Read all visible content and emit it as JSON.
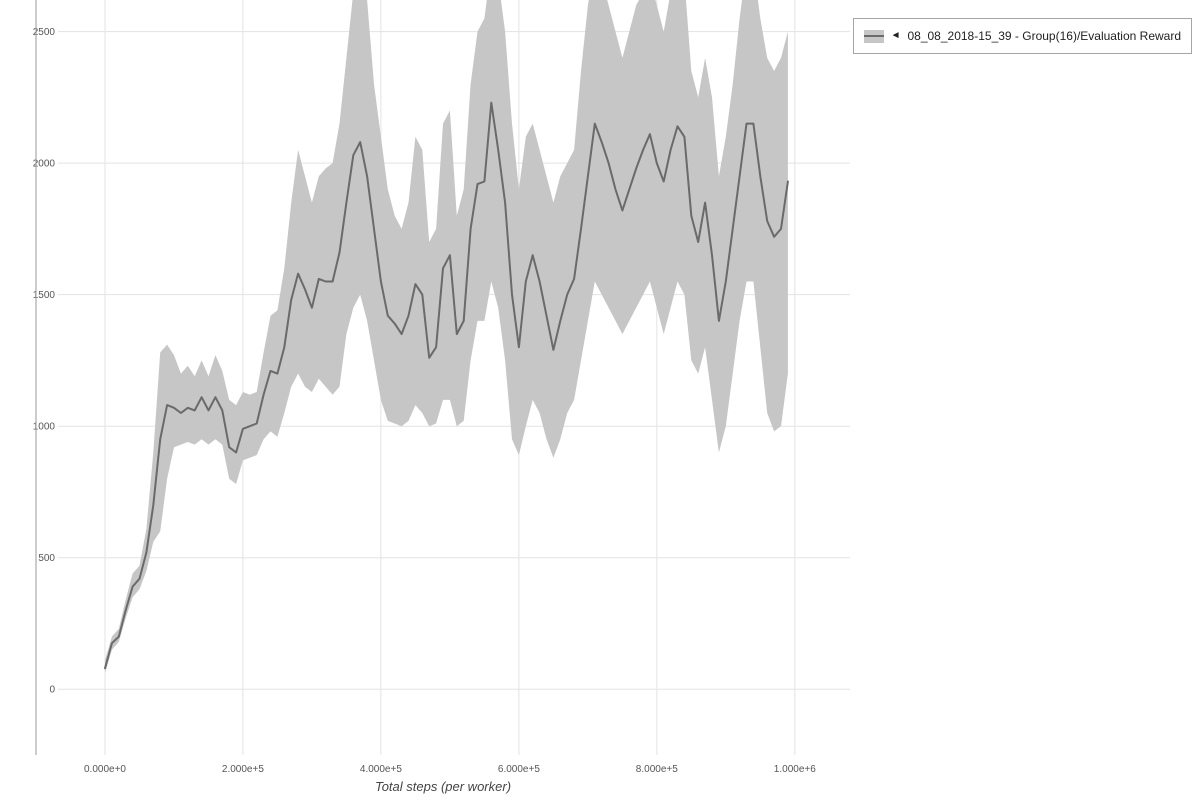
{
  "legend": {
    "arrow": "◄",
    "label": "08_08_2018-15_39 - Group(16)/Evaluation Reward"
  },
  "colors": {
    "grid": "#e3e3e3",
    "axis_line": "#999999",
    "tick_text": "#555555",
    "axis_title": "#444444",
    "band": "#c6c6c6",
    "line": "#6a6a6a"
  },
  "chart_data": {
    "type": "line",
    "title": "",
    "xlabel": "Total steps (per worker)",
    "ylabel": "",
    "grid": true,
    "legend_position": "top-right",
    "x_range": [
      -100000,
      1080000
    ],
    "y_range": [
      -250,
      2620
    ],
    "x_ticks": {
      "values": [
        0,
        200000,
        400000,
        600000,
        800000,
        1000000
      ],
      "labels": [
        "0.000e+0",
        "2.000e+5",
        "4.000e+5",
        "6.000e+5",
        "8.000e+5",
        "1.000e+6"
      ]
    },
    "y_ticks": {
      "values": [
        0,
        500,
        1000,
        1500,
        2000,
        2500
      ],
      "labels": [
        "0",
        "500",
        "1000",
        "1500",
        "2000",
        "2500"
      ]
    },
    "series": [
      {
        "name": "08_08_2018-15_39 - Group(16)/Evaluation Reward",
        "line_color": "#6a6a6a",
        "band_color": "#c6c6c6",
        "x": [
          0,
          10000,
          20000,
          30000,
          40000,
          50000,
          60000,
          70000,
          80000,
          90000,
          100000,
          110000,
          120000,
          130000,
          140000,
          150000,
          160000,
          170000,
          180000,
          190000,
          200000,
          210000,
          220000,
          230000,
          240000,
          250000,
          260000,
          270000,
          280000,
          290000,
          300000,
          310000,
          320000,
          330000,
          340000,
          350000,
          360000,
          370000,
          380000,
          390000,
          400000,
          410000,
          420000,
          430000,
          440000,
          450000,
          460000,
          470000,
          480000,
          490000,
          500000,
          510000,
          520000,
          530000,
          540000,
          550000,
          560000,
          570000,
          580000,
          590000,
          600000,
          610000,
          620000,
          630000,
          640000,
          650000,
          660000,
          670000,
          680000,
          690000,
          700000,
          710000,
          720000,
          730000,
          740000,
          750000,
          760000,
          770000,
          780000,
          790000,
          800000,
          810000,
          820000,
          830000,
          840000,
          850000,
          860000,
          870000,
          880000,
          890000,
          900000,
          910000,
          920000,
          930000,
          940000,
          950000,
          960000,
          970000,
          980000,
          990000
        ],
        "mean": [
          80,
          175,
          200,
          300,
          390,
          420,
          520,
          700,
          950,
          1080,
          1070,
          1050,
          1070,
          1060,
          1110,
          1060,
          1110,
          1060,
          920,
          900,
          990,
          1000,
          1010,
          1120,
          1210,
          1200,
          1300,
          1480,
          1580,
          1520,
          1450,
          1560,
          1550,
          1550,
          1660,
          1850,
          2030,
          2080,
          1950,
          1750,
          1550,
          1420,
          1390,
          1350,
          1420,
          1540,
          1500,
          1260,
          1300,
          1600,
          1650,
          1350,
          1400,
          1750,
          1920,
          1930,
          2230,
          2050,
          1850,
          1500,
          1300,
          1550,
          1650,
          1550,
          1420,
          1290,
          1400,
          1500,
          1560,
          1750,
          1950,
          2150,
          2080,
          2000,
          1900,
          1820,
          1900,
          1980,
          2050,
          2110,
          2000,
          1930,
          2050,
          2140,
          2100,
          1800,
          1700,
          1850,
          1650,
          1400,
          1550,
          1750,
          1950,
          2150,
          2150,
          1950,
          1780,
          1720,
          1750,
          1930
        ],
        "band_low": [
          60,
          150,
          180,
          270,
          350,
          380,
          450,
          560,
          600,
          800,
          920,
          930,
          940,
          930,
          950,
          930,
          950,
          930,
          800,
          780,
          870,
          880,
          890,
          950,
          980,
          960,
          1050,
          1150,
          1200,
          1150,
          1130,
          1180,
          1150,
          1120,
          1150,
          1350,
          1450,
          1500,
          1400,
          1250,
          1100,
          1020,
          1010,
          1000,
          1020,
          1080,
          1050,
          1000,
          1010,
          1100,
          1100,
          1000,
          1020,
          1250,
          1400,
          1400,
          1550,
          1450,
          1250,
          950,
          890,
          1000,
          1100,
          1050,
          950,
          880,
          950,
          1050,
          1100,
          1250,
          1400,
          1550,
          1500,
          1450,
          1400,
          1350,
          1400,
          1450,
          1500,
          1550,
          1450,
          1350,
          1450,
          1550,
          1500,
          1250,
          1200,
          1300,
          1100,
          900,
          1000,
          1200,
          1400,
          1550,
          1550,
          1300,
          1050,
          980,
          1000,
          1200
        ],
        "band_high": [
          110,
          200,
          230,
          340,
          440,
          470,
          610,
          900,
          1280,
          1310,
          1270,
          1200,
          1230,
          1190,
          1250,
          1190,
          1270,
          1210,
          1100,
          1080,
          1130,
          1120,
          1130,
          1280,
          1420,
          1440,
          1600,
          1850,
          2050,
          1950,
          1850,
          1950,
          1980,
          2000,
          2150,
          2400,
          2650,
          2700,
          2620,
          2300,
          2100,
          1900,
          1800,
          1750,
          1850,
          2100,
          2050,
          1700,
          1750,
          2150,
          2200,
          1800,
          1900,
          2300,
          2500,
          2550,
          2750,
          2700,
          2500,
          2150,
          1900,
          2100,
          2150,
          2050,
          1950,
          1850,
          1950,
          2000,
          2050,
          2350,
          2600,
          2750,
          2700,
          2600,
          2500,
          2400,
          2500,
          2600,
          2650,
          2700,
          2600,
          2500,
          2650,
          2750,
          2700,
          2350,
          2250,
          2400,
          2250,
          1950,
          2100,
          2300,
          2550,
          2750,
          2750,
          2550,
          2400,
          2350,
          2400,
          2500
        ]
      }
    ]
  }
}
